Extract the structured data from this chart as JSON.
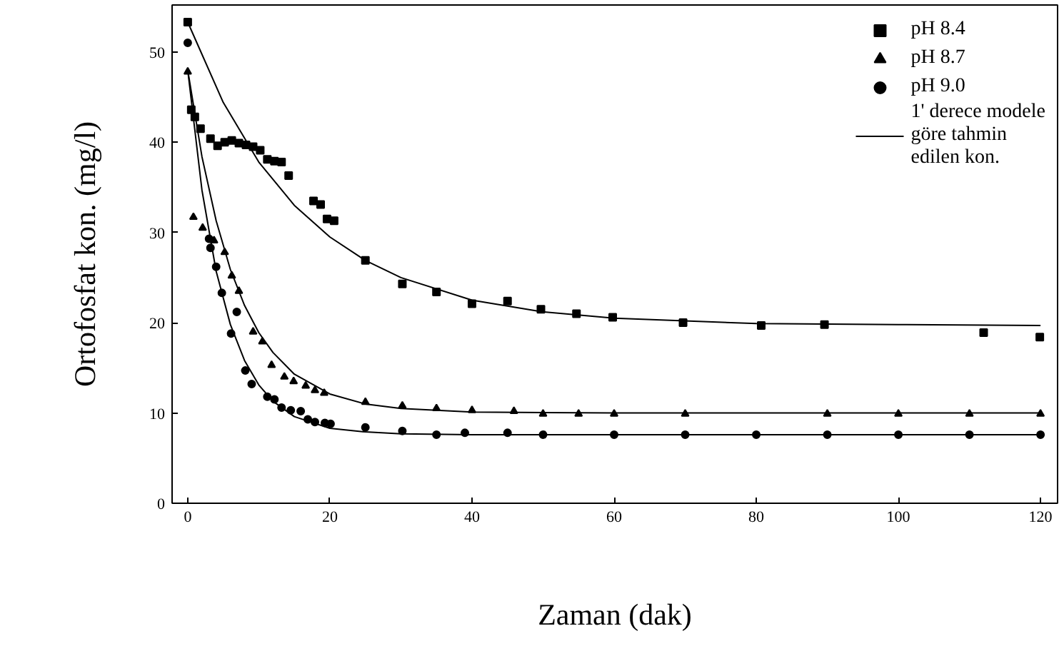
{
  "chart_data": {
    "type": "scatter",
    "xlabel": "Zaman (dak)",
    "ylabel": "Ortofosfat kon. (mg/l)",
    "xlim": [
      -2.2,
      122.4
    ],
    "ylim": [
      0,
      55.2
    ],
    "xticks": [
      0,
      20,
      40,
      60,
      80,
      100,
      120
    ],
    "yticks": [
      0,
      10,
      20,
      30,
      40,
      50
    ],
    "grid": false,
    "legend": "top right",
    "series": [
      {
        "name": "pH 8.4",
        "marker": "square",
        "color": "#000000",
        "x": [
          0,
          0.5,
          1.0,
          1.8,
          3.2,
          4.2,
          5.2,
          6.2,
          7.2,
          8.2,
          9.2,
          10.2,
          11.2,
          12.2,
          13.2,
          14.2,
          17.7,
          18.7,
          19.6,
          20.6,
          25,
          30.2,
          35,
          40,
          45,
          49.7,
          54.7,
          59.8,
          69.7,
          80.7,
          89.6,
          112,
          119.9
        ],
        "values": [
          53.3,
          43.6,
          42.8,
          41.5,
          40.4,
          39.6,
          40.0,
          40.2,
          39.9,
          39.7,
          39.5,
          39.1,
          38.1,
          37.9,
          37.8,
          36.3,
          33.5,
          33.1,
          31.5,
          31.3,
          26.9,
          24.3,
          23.4,
          22.1,
          22.4,
          21.5,
          21.0,
          20.6,
          20.0,
          19.7,
          19.8,
          18.9,
          18.4
        ]
      },
      {
        "name": "pH 8.7",
        "marker": "triangle",
        "color": "#000000",
        "x": [
          0,
          0.8,
          2.1,
          3.7,
          5.2,
          6.2,
          7.2,
          9.2,
          10.5,
          11.8,
          13.6,
          14.9,
          16.6,
          17.9,
          19.2,
          25,
          30.2,
          35,
          40,
          45.9,
          50,
          55,
          60,
          70,
          90,
          100,
          110,
          120
        ],
        "values": [
          47.8,
          31.7,
          30.5,
          29.1,
          27.8,
          25.2,
          23.5,
          19.0,
          17.9,
          15.3,
          14.0,
          13.5,
          13.0,
          12.5,
          12.2,
          11.2,
          10.8,
          10.5,
          10.3,
          10.2,
          9.9,
          9.9,
          9.9,
          9.9,
          9.9,
          9.9,
          9.9,
          9.9
        ]
      },
      {
        "name": "pH 9.0",
        "marker": "circle",
        "color": "#000000",
        "x": [
          0,
          3.0,
          3.2,
          4.0,
          4.8,
          6.1,
          6.9,
          8.1,
          9.0,
          11.2,
          12.2,
          13.2,
          14.5,
          15.9,
          16.9,
          17.9,
          19.3,
          20.1,
          25,
          30.2,
          35,
          39,
          45,
          50,
          60,
          70,
          80,
          90,
          100,
          110,
          120
        ],
        "values": [
          51.0,
          29.3,
          28.3,
          26.2,
          23.3,
          18.8,
          21.2,
          14.7,
          13.2,
          11.8,
          11.5,
          10.6,
          10.3,
          10.2,
          9.3,
          9.0,
          8.9,
          8.8,
          8.4,
          8.0,
          7.6,
          7.8,
          7.8,
          7.6,
          7.6,
          7.6,
          7.6,
          7.6,
          7.6,
          7.6,
          7.6
        ]
      },
      {
        "name": "1' derece modele göre tahmin edilen kon.",
        "type": "line",
        "color": "#000000",
        "x": [
          0,
          5,
          10,
          15,
          20,
          25,
          30,
          40,
          50,
          60,
          80,
          100,
          120
        ],
        "values": [
          53.3,
          44.4,
          37.8,
          33.0,
          29.5,
          26.9,
          25.0,
          22.5,
          21.2,
          20.5,
          19.9,
          19.8,
          19.7
        ]
      },
      {
        "type": "line",
        "color": "#000000",
        "x": [
          0,
          2,
          4,
          6,
          8,
          10,
          12,
          15,
          20,
          25,
          30,
          40,
          60,
          120
        ],
        "values": [
          48.0,
          38.4,
          31.3,
          25.9,
          21.9,
          18.9,
          16.7,
          14.3,
          12.1,
          11.0,
          10.5,
          10.1,
          10.0,
          10.0
        ]
      },
      {
        "type": "line",
        "color": "#000000",
        "x": [
          0,
          2,
          4,
          6,
          8,
          10,
          12,
          15,
          20,
          25,
          30,
          40,
          120
        ],
        "values": [
          48.0,
          34.7,
          25.7,
          19.8,
          15.8,
          13.1,
          11.3,
          9.6,
          8.3,
          7.9,
          7.7,
          7.6,
          7.6
        ]
      }
    ]
  }
}
